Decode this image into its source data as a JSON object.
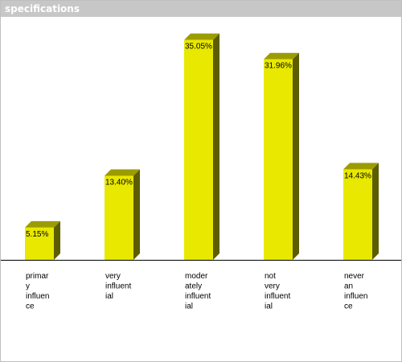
{
  "header": {
    "title": "specifications"
  },
  "chart_data": {
    "type": "bar",
    "title": "specifications",
    "xlabel": "",
    "ylabel": "",
    "ylim": [
      0,
      40
    ],
    "categories": [
      [
        "primar",
        "y",
        "influen",
        "ce"
      ],
      [
        "very",
        "influent",
        "ial"
      ],
      [
        "moder",
        "ately",
        "influent",
        "ial"
      ],
      [
        "not",
        "very",
        "influent",
        "ial"
      ],
      [
        "never",
        "an",
        "influen",
        "ce"
      ]
    ],
    "values": [
      5.15,
      13.4,
      35.05,
      31.96,
      14.43
    ],
    "data_labels": [
      "5.15%",
      "13.40%",
      "35.05%",
      "31.96%",
      "14.43%"
    ],
    "colors": {
      "bar_front": "#e8e800",
      "bar_side": "#5c5c00",
      "bar_top": "#9c9c00",
      "baseline": "#000000"
    },
    "grid": false,
    "legend": "none"
  }
}
